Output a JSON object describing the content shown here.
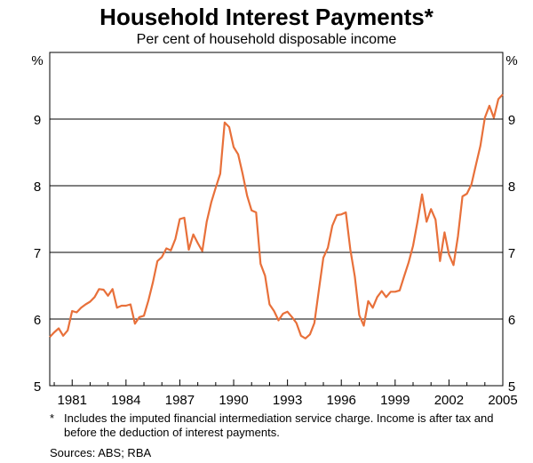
{
  "chart_data": {
    "type": "line",
    "title": "Household Interest Payments*",
    "subtitle": "Per cent of household disposable income",
    "unit_left": "%",
    "unit_right": "%",
    "xlim": [
      1979.75,
      2005.0
    ],
    "ylim": [
      5,
      10
    ],
    "x_ticks": [
      "1981",
      "1984",
      "1987",
      "1990",
      "1993",
      "1996",
      "1999",
      "2002",
      "2005"
    ],
    "y_ticks": [
      "5",
      "6",
      "7",
      "8",
      "9"
    ],
    "grid": true,
    "series_color": "#E8703A",
    "series": [
      {
        "points": [
          [
            1979.75,
            5.73
          ],
          [
            1980.0,
            5.8
          ],
          [
            1980.25,
            5.86
          ],
          [
            1980.5,
            5.75
          ],
          [
            1980.75,
            5.83
          ],
          [
            1981.0,
            6.12
          ],
          [
            1981.25,
            6.1
          ],
          [
            1981.5,
            6.17
          ],
          [
            1981.75,
            6.22
          ],
          [
            1982.0,
            6.26
          ],
          [
            1982.25,
            6.33
          ],
          [
            1982.5,
            6.45
          ],
          [
            1982.75,
            6.44
          ],
          [
            1983.0,
            6.35
          ],
          [
            1983.25,
            6.45
          ],
          [
            1983.5,
            6.17
          ],
          [
            1983.75,
            6.2
          ],
          [
            1984.0,
            6.2
          ],
          [
            1984.25,
            6.22
          ],
          [
            1984.5,
            5.93
          ],
          [
            1984.75,
            6.03
          ],
          [
            1985.0,
            6.05
          ],
          [
            1985.25,
            6.28
          ],
          [
            1985.5,
            6.55
          ],
          [
            1985.75,
            6.87
          ],
          [
            1986.0,
            6.93
          ],
          [
            1986.25,
            7.06
          ],
          [
            1986.5,
            7.03
          ],
          [
            1986.75,
            7.2
          ],
          [
            1987.0,
            7.5
          ],
          [
            1987.25,
            7.52
          ],
          [
            1987.5,
            7.04
          ],
          [
            1987.75,
            7.27
          ],
          [
            1988.0,
            7.14
          ],
          [
            1988.25,
            7.02
          ],
          [
            1988.5,
            7.46
          ],
          [
            1988.75,
            7.75
          ],
          [
            1989.0,
            7.97
          ],
          [
            1989.25,
            8.18
          ],
          [
            1989.5,
            8.95
          ],
          [
            1989.75,
            8.88
          ],
          [
            1990.0,
            8.58
          ],
          [
            1990.25,
            8.47
          ],
          [
            1990.5,
            8.18
          ],
          [
            1990.75,
            7.85
          ],
          [
            1991.0,
            7.63
          ],
          [
            1991.25,
            7.6
          ],
          [
            1991.5,
            6.83
          ],
          [
            1991.75,
            6.65
          ],
          [
            1992.0,
            6.22
          ],
          [
            1992.25,
            6.12
          ],
          [
            1992.5,
            5.98
          ],
          [
            1992.75,
            6.08
          ],
          [
            1993.0,
            6.11
          ],
          [
            1993.25,
            6.03
          ],
          [
            1993.5,
            5.94
          ],
          [
            1993.75,
            5.75
          ],
          [
            1994.0,
            5.71
          ],
          [
            1994.25,
            5.77
          ],
          [
            1994.5,
            5.94
          ],
          [
            1994.75,
            6.44
          ],
          [
            1995.0,
            6.92
          ],
          [
            1995.25,
            7.07
          ],
          [
            1995.5,
            7.4
          ],
          [
            1995.75,
            7.56
          ],
          [
            1996.0,
            7.57
          ],
          [
            1996.25,
            7.6
          ],
          [
            1996.5,
            7.05
          ],
          [
            1996.75,
            6.64
          ],
          [
            1997.0,
            6.06
          ],
          [
            1997.25,
            5.9
          ],
          [
            1997.5,
            6.27
          ],
          [
            1997.75,
            6.17
          ],
          [
            1998.0,
            6.33
          ],
          [
            1998.25,
            6.42
          ],
          [
            1998.5,
            6.33
          ],
          [
            1998.75,
            6.41
          ],
          [
            1999.0,
            6.41
          ],
          [
            1999.25,
            6.43
          ],
          [
            1999.5,
            6.64
          ],
          [
            1999.75,
            6.85
          ],
          [
            2000.0,
            7.1
          ],
          [
            2000.25,
            7.47
          ],
          [
            2000.5,
            7.87
          ],
          [
            2000.75,
            7.46
          ],
          [
            2001.0,
            7.65
          ],
          [
            2001.25,
            7.49
          ],
          [
            2001.5,
            6.87
          ],
          [
            2001.75,
            7.3
          ],
          [
            2002.0,
            6.97
          ],
          [
            2002.25,
            6.81
          ],
          [
            2002.5,
            7.24
          ],
          [
            2002.75,
            7.84
          ],
          [
            2003.0,
            7.88
          ],
          [
            2003.25,
            8.02
          ],
          [
            2003.5,
            8.31
          ],
          [
            2003.75,
            8.6
          ],
          [
            2004.0,
            9.02
          ],
          [
            2004.25,
            9.2
          ],
          [
            2004.5,
            9.02
          ],
          [
            2004.75,
            9.3
          ],
          [
            2005.0,
            9.37
          ]
        ]
      }
    ]
  },
  "footnote": {
    "mark": "*",
    "text": "Includes the imputed financial intermediation service charge. Income is after tax and before the deduction of interest payments."
  },
  "sources": "Sources: ABS; RBA"
}
